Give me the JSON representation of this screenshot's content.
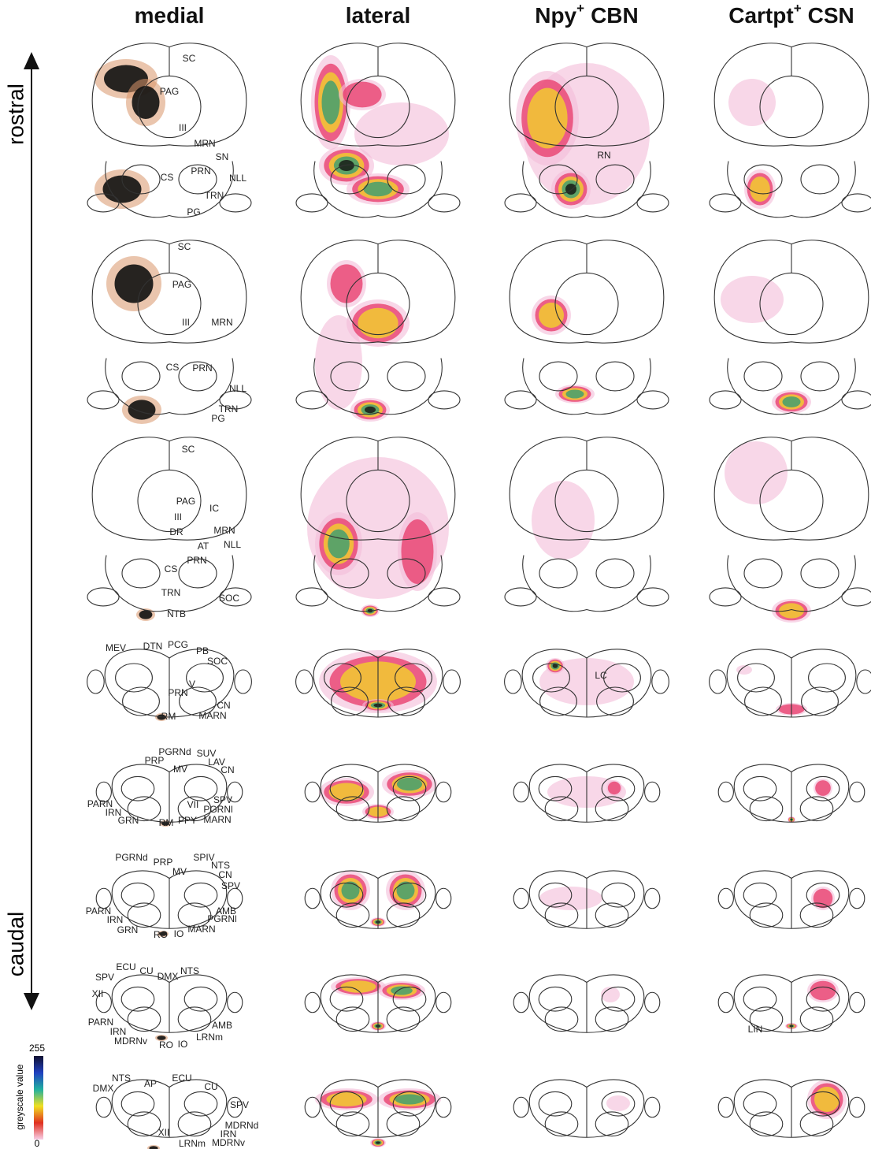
{
  "columns": [
    {
      "main": "medial"
    },
    {
      "main": "lateral"
    },
    {
      "main": "Npy",
      "sup": "+",
      "rest": "CBN"
    },
    {
      "main": "Cartpt",
      "sup": "+",
      "rest": "CSN"
    }
  ],
  "axis": {
    "top": "rostral",
    "bottom": "caudal"
  },
  "colorbar": {
    "title": "greyscale value",
    "max": "255",
    "min": "0"
  },
  "sections": [
    {
      "medial_labels": [
        "SC",
        "PAG",
        "III",
        "MRN",
        "SN",
        "CS",
        "PRN",
        "NLL",
        "TRN",
        "PG"
      ],
      "npy_labels": [
        "RN"
      ]
    },
    {
      "medial_labels": [
        "SC",
        "PAG",
        "III",
        "MRN",
        "CS",
        "PRN",
        "NLL",
        "TRN",
        "PG"
      ]
    },
    {
      "medial_labels": [
        "SC",
        "PAG",
        "IC",
        "III",
        "DR",
        "MRN",
        "AT",
        "NLL",
        "PRN",
        "CS",
        "TRN",
        "SOC",
        "NTB"
      ]
    },
    {
      "medial_labels": [
        "MEV",
        "DTN",
        "PCG",
        "PB",
        "SOC",
        "V",
        "PRN",
        "CN",
        "RM",
        "MARN"
      ],
      "npy_labels": [
        "LC"
      ]
    },
    {
      "medial_labels": [
        "PGRNd",
        "SUV",
        "PRP",
        "LAV",
        "MV",
        "CN",
        "SPV",
        "PARN",
        "IRN",
        "VII",
        "PGRNl",
        "GRN",
        "RM",
        "PPY",
        "MARN"
      ]
    },
    {
      "medial_labels": [
        "PGRNd",
        "PRP",
        "SPIV",
        "MV",
        "NTS",
        "CN",
        "SPV",
        "AMB",
        "PARN",
        "IRN",
        "PGRNl",
        "GRN",
        "RO",
        "IO",
        "MARN"
      ]
    },
    {
      "medial_labels": [
        "ECU",
        "CU",
        "NTS",
        "SPV",
        "DMX",
        "XII",
        "PARN",
        "AMB",
        "IRN",
        "MDRNv",
        "RO",
        "IO",
        "LRNm"
      ],
      "cartpt_labels": [
        "LIN"
      ]
    },
    {
      "medial_labels": [
        "NTS",
        "AP",
        "ECU",
        "DMX",
        "CU",
        "SPV",
        "MDRNd",
        "XII",
        "IRN",
        "LRNm",
        "MDRNv"
      ]
    }
  ]
}
